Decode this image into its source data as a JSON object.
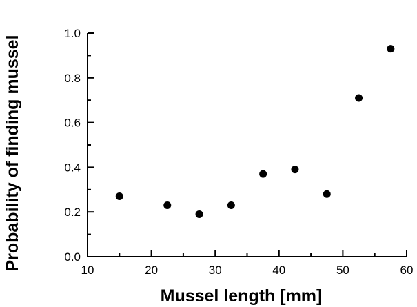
{
  "chart_data": {
    "type": "scatter",
    "title": "",
    "xlabel": "Mussel length [mm]",
    "ylabel": "Probability of finding mussel",
    "xlim": [
      10,
      60
    ],
    "ylim": [
      0.0,
      1.0
    ],
    "x_ticks": [
      10,
      20,
      30,
      40,
      50,
      60
    ],
    "x_tick_labels": [
      "10",
      "20",
      "30",
      "40",
      "50",
      "60"
    ],
    "y_ticks": [
      0.0,
      0.2,
      0.4,
      0.6,
      0.8,
      1.0
    ],
    "y_tick_labels": [
      "0.0",
      "0.2",
      "0.4",
      "0.6",
      "0.8",
      "1.0"
    ],
    "grid": false,
    "legend": false,
    "marker_color": "#000000",
    "series": [
      {
        "x": [
          15,
          22.5,
          27.5,
          32.5,
          37.5,
          42.5,
          47.5,
          52.5,
          57.5
        ],
        "y": [
          0.27,
          0.23,
          0.19,
          0.23,
          0.37,
          0.39,
          0.28,
          0.71,
          0.93
        ]
      }
    ]
  }
}
